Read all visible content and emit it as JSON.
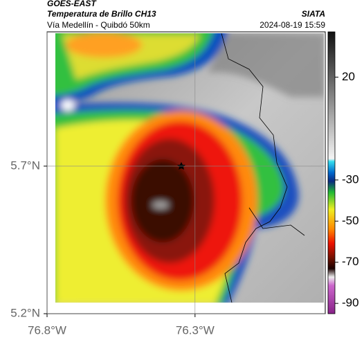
{
  "header": {
    "title": "GOES-EAST",
    "subtitle": "Temperatura de Brillo CH13",
    "route": "Vía Medellín - Quibdó 50km",
    "source": "SIATA",
    "timestamp": "2024-08-19 15:59"
  },
  "map": {
    "xlim": [
      -76.8,
      -75.86
    ],
    "ylim": [
      5.2,
      6.155
    ],
    "xticks": [
      {
        "value": -76.8,
        "label": "76.8°W"
      },
      {
        "value": -76.3,
        "label": "76.3°W"
      }
    ],
    "yticks": [
      {
        "value": 5.2,
        "label": "5.2°N"
      },
      {
        "value": 5.7,
        "label": "5.7°N"
      }
    ]
  },
  "colorbar": {
    "clim": [
      -95,
      42
    ],
    "ticks": [
      20,
      -30,
      -50,
      -70,
      -90
    ]
  }
}
